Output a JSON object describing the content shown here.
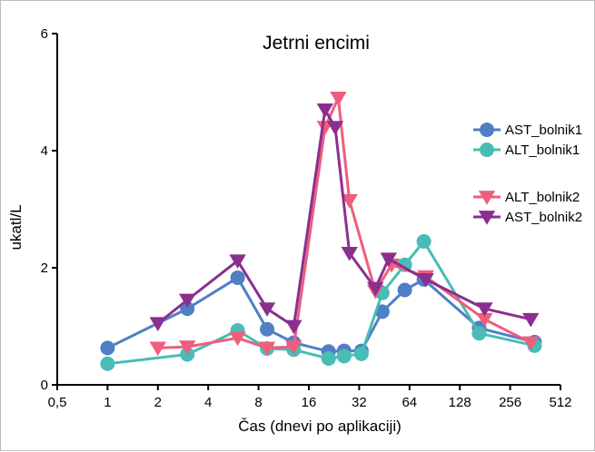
{
  "chart_data": {
    "type": "line",
    "title": "Jetrni encimi",
    "xlabel": "Čas (dnevi po aplikaciji)",
    "ylabel": "ukatl/L",
    "x_scale": "log2",
    "xlim": [
      0.5,
      512
    ],
    "ylim": [
      0,
      6
    ],
    "x_ticks": [
      {
        "value": 0.5,
        "label": "0,5"
      },
      {
        "value": 1,
        "label": "1"
      },
      {
        "value": 2,
        "label": "2"
      },
      {
        "value": 4,
        "label": "4"
      },
      {
        "value": 8,
        "label": "8"
      },
      {
        "value": 16,
        "label": "16"
      },
      {
        "value": 32,
        "label": "32"
      },
      {
        "value": 64,
        "label": "64"
      },
      {
        "value": 128,
        "label": "128"
      },
      {
        "value": 256,
        "label": "256"
      },
      {
        "value": 512,
        "label": "512"
      }
    ],
    "y_ticks": [
      {
        "value": 0,
        "label": "0"
      },
      {
        "value": 2,
        "label": "2"
      },
      {
        "value": 4,
        "label": "4"
      },
      {
        "value": 6,
        "label": "6"
      }
    ],
    "grid": false,
    "legend_position": "right",
    "series": [
      {
        "name": "AST_bolnik1",
        "color": "#4f7fc6",
        "marker": "circle",
        "x": [
          1,
          3,
          6,
          9,
          13,
          21,
          26,
          33,
          44,
          60,
          78,
          167,
          358
        ],
        "y": [
          0.63,
          1.3,
          1.83,
          0.95,
          0.72,
          0.57,
          0.58,
          0.58,
          1.25,
          1.62,
          1.8,
          0.97,
          0.73
        ]
      },
      {
        "name": "ALT_bolnik1",
        "color": "#49bcb6",
        "marker": "circle",
        "x": [
          1,
          3,
          6,
          9,
          13,
          21,
          26,
          33,
          44,
          60,
          78,
          167,
          358
        ],
        "y": [
          0.36,
          0.52,
          0.93,
          0.62,
          0.6,
          0.45,
          0.49,
          0.53,
          1.57,
          2.05,
          2.45,
          0.88,
          0.67
        ]
      },
      {
        "name": "ALT_bolnik2",
        "color": "#ee5e7d",
        "marker": "triangle-down",
        "x": [
          2,
          3,
          6,
          9,
          13,
          20,
          24,
          28,
          40,
          50,
          80,
          180,
          340
        ],
        "y": [
          0.63,
          0.65,
          0.8,
          0.63,
          0.65,
          4.4,
          4.9,
          3.15,
          1.6,
          2.05,
          1.85,
          1.12,
          0.72
        ]
      },
      {
        "name": "AST_bolnik2",
        "color": "#8b2f8f",
        "marker": "triangle-down",
        "x": [
          2,
          3,
          6,
          9,
          13,
          20,
          23,
          28,
          40,
          48,
          80,
          180,
          340
        ],
        "y": [
          1.05,
          1.45,
          2.12,
          1.3,
          1.0,
          4.7,
          4.4,
          2.25,
          1.65,
          2.15,
          1.8,
          1.3,
          1.12
        ]
      }
    ]
  }
}
